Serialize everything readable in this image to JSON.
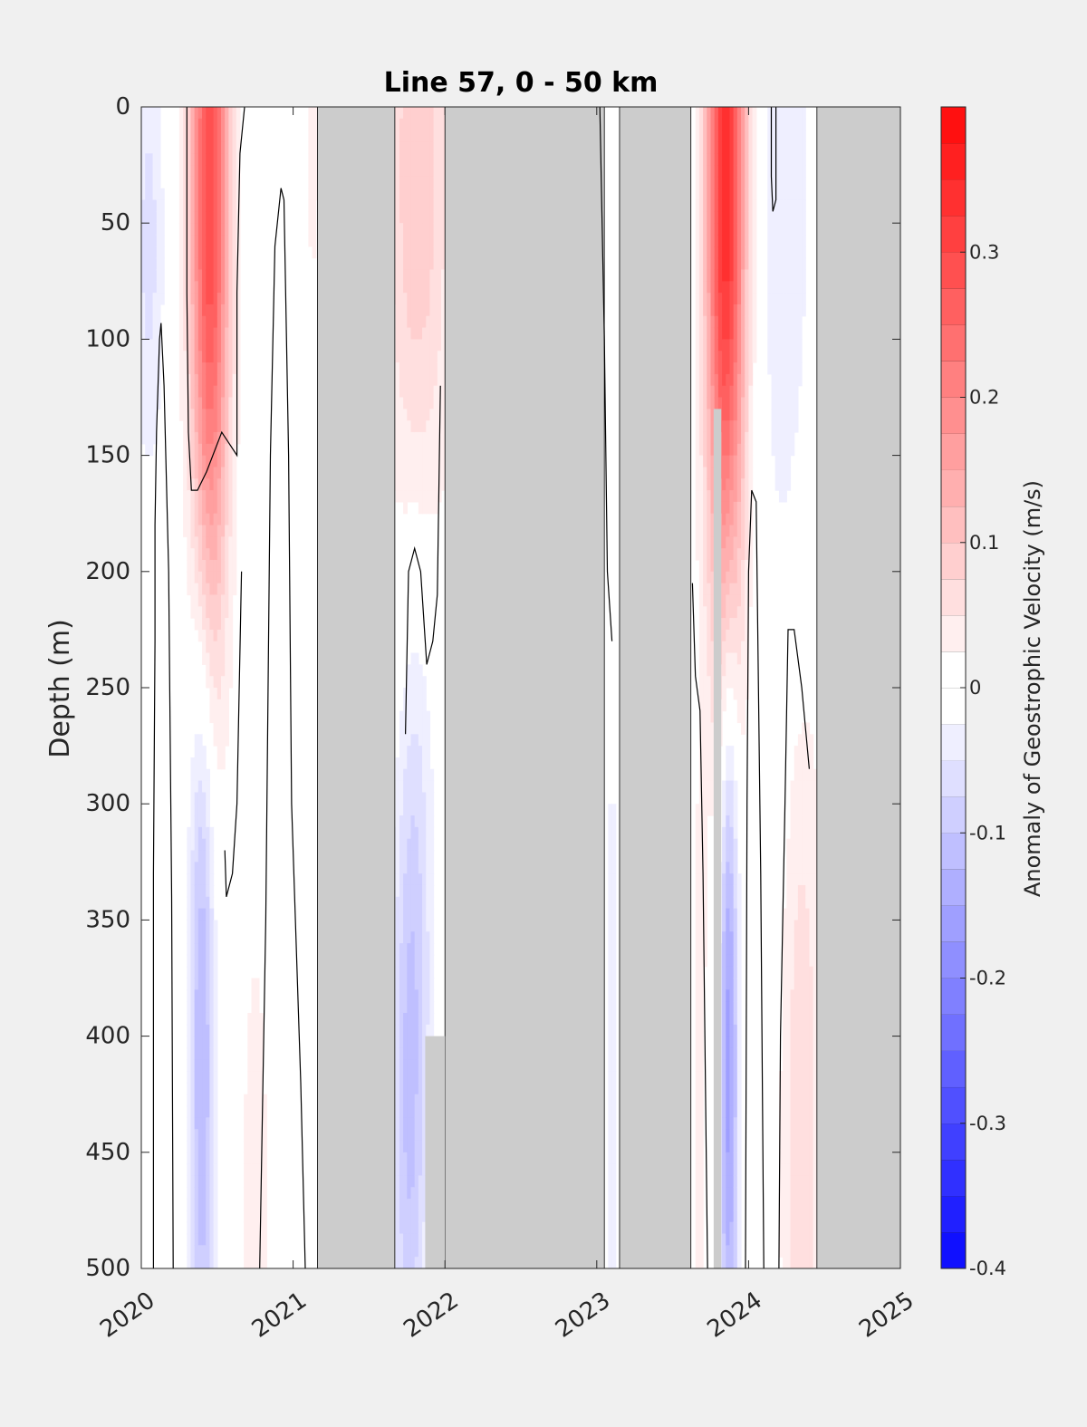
{
  "chart_data": {
    "type": "heatmap",
    "title": "Line 57, 0 - 50 km",
    "ylabel": "Depth (m)",
    "xlabel": "",
    "xlim": [
      2020,
      2025
    ],
    "ylim": [
      0,
      500
    ],
    "y_reversed": true,
    "x_ticks": [
      "2020",
      "2021",
      "2022",
      "2023",
      "2024",
      "2025"
    ],
    "y_ticks": [
      "0",
      "50",
      "100",
      "150",
      "200",
      "250",
      "300",
      "350",
      "400",
      "450",
      "500"
    ],
    "colorbar": {
      "label": "Anomaly of Geostrophic Velocity (m/s)",
      "range": [
        -0.4,
        0.4
      ],
      "step": 0.025,
      "ticks": [
        "0.3",
        "0.2",
        "0.1",
        "0",
        "-0.1",
        "-0.2",
        "-0.3",
        "-0.4"
      ],
      "colors": {
        "negative": "#0000ff",
        "zero": "#ffffff",
        "positive": "#ff0000"
      }
    },
    "no_data_color": "#cccccc",
    "no_data_periods": [
      {
        "start": 2021.16,
        "end": 2021.67
      },
      {
        "start": 2022.0,
        "end": 2023.05
      },
      {
        "start": 2023.15,
        "end": 2023.62
      },
      {
        "start": 2024.45,
        "end": 2025.0
      }
    ],
    "partial_gaps": [
      {
        "x_start": 2021.87,
        "x_end": 2022.0,
        "depth_from": 400,
        "depth_to": 500
      },
      {
        "x_start": 2023.77,
        "x_end": 2023.82,
        "depth_from": 130,
        "depth_to": 500
      }
    ],
    "velocity_features": [
      {
        "x_center": 2020.45,
        "depth_center": 40,
        "half_width_years": 0.09,
        "depth_scale": 130,
        "value": 0.3
      },
      {
        "x_center": 2020.4,
        "depth_center": 400,
        "half_width_years": 0.06,
        "depth_scale": 130,
        "value": -0.13
      },
      {
        "x_center": 2020.05,
        "depth_center": 60,
        "half_width_years": 0.07,
        "depth_scale": 70,
        "value": -0.06
      },
      {
        "x_center": 2020.75,
        "depth_center": 470,
        "half_width_years": 0.06,
        "depth_scale": 80,
        "value": 0.05
      },
      {
        "x_center": 2021.13,
        "depth_center": 20,
        "half_width_years": 0.03,
        "depth_scale": 40,
        "value": 0.05
      },
      {
        "x_center": 2021.82,
        "depth_center": 30,
        "half_width_years": 0.15,
        "depth_scale": 120,
        "value": 0.1
      },
      {
        "x_center": 2021.76,
        "depth_center": 440,
        "half_width_years": 0.08,
        "depth_scale": 100,
        "value": -0.09
      },
      {
        "x_center": 2021.82,
        "depth_center": 310,
        "half_width_years": 0.09,
        "depth_scale": 110,
        "value": -0.05
      },
      {
        "x_center": 2023.1,
        "depth_center": 440,
        "half_width_years": 0.02,
        "depth_scale": 120,
        "value": -0.06
      },
      {
        "x_center": 2023.85,
        "depth_center": 30,
        "half_width_years": 0.09,
        "depth_scale": 140,
        "value": 0.35
      },
      {
        "x_center": 2023.87,
        "depth_center": 400,
        "half_width_years": 0.045,
        "depth_scale": 120,
        "value": -0.17
      },
      {
        "x_center": 2024.25,
        "depth_center": 30,
        "half_width_years": 0.12,
        "depth_scale": 150,
        "value": -0.05
      },
      {
        "x_center": 2024.35,
        "depth_center": 440,
        "half_width_years": 0.1,
        "depth_scale": 150,
        "value": 0.07
      },
      {
        "x_center": 2023.68,
        "depth_center": 430,
        "half_width_years": 0.03,
        "depth_scale": 120,
        "value": 0.04
      }
    ],
    "zero_contours": [
      [
        [
          2020.08,
          500
        ],
        [
          2020.08,
          330
        ],
        [
          2020.09,
          230
        ],
        [
          2020.09,
          180
        ],
        [
          2020.1,
          140
        ],
        [
          2020.12,
          100
        ],
        [
          2020.13,
          93
        ],
        [
          2020.15,
          120
        ],
        [
          2020.18,
          200
        ],
        [
          2020.2,
          340
        ],
        [
          2020.21,
          500
        ]
      ],
      [
        [
          2020.3,
          0
        ],
        [
          2020.3,
          80
        ],
        [
          2020.31,
          140
        ],
        [
          2020.33,
          165
        ],
        [
          2020.37,
          165
        ],
        [
          2020.43,
          157
        ],
        [
          2020.53,
          140
        ],
        [
          2020.63,
          150
        ],
        [
          2020.63,
          80
        ],
        [
          2020.65,
          20
        ],
        [
          2020.68,
          0
        ]
      ],
      [
        [
          2020.78,
          500
        ],
        [
          2020.82,
          350
        ],
        [
          2020.85,
          150
        ],
        [
          2020.88,
          60
        ],
        [
          2020.92,
          35
        ],
        [
          2020.94,
          40
        ],
        [
          2020.97,
          150
        ],
        [
          2020.99,
          300
        ],
        [
          2021.05,
          420
        ],
        [
          2021.08,
          500
        ]
      ],
      [
        [
          2020.55,
          320
        ],
        [
          2020.56,
          340
        ],
        [
          2020.6,
          330
        ],
        [
          2020.63,
          300
        ],
        [
          2020.66,
          200
        ]
      ],
      [
        [
          2021.74,
          270
        ],
        [
          2021.76,
          200
        ],
        [
          2021.8,
          190
        ],
        [
          2021.84,
          200
        ],
        [
          2021.88,
          240
        ],
        [
          2021.92,
          230
        ],
        [
          2021.95,
          210
        ],
        [
          2021.97,
          120
        ]
      ],
      [
        [
          2023.02,
          0
        ],
        [
          2023.05,
          100
        ],
        [
          2023.07,
          200
        ],
        [
          2023.09,
          220
        ],
        [
          2023.1,
          230
        ]
      ],
      [
        [
          2023.63,
          205
        ],
        [
          2023.65,
          245
        ],
        [
          2023.68,
          260
        ],
        [
          2023.7,
          330
        ],
        [
          2023.73,
          500
        ]
      ],
      [
        [
          2023.98,
          500
        ],
        [
          2023.99,
          300
        ],
        [
          2024.0,
          200
        ],
        [
          2024.02,
          165
        ],
        [
          2024.05,
          170
        ],
        [
          2024.08,
          330
        ],
        [
          2024.1,
          500
        ]
      ],
      [
        [
          2024.2,
          500
        ],
        [
          2024.21,
          400
        ],
        [
          2024.24,
          300
        ],
        [
          2024.26,
          225
        ],
        [
          2024.3,
          225
        ],
        [
          2024.35,
          250
        ],
        [
          2024.4,
          285
        ]
      ],
      [
        [
          2024.15,
          0
        ],
        [
          2024.15,
          30
        ],
        [
          2024.16,
          45
        ],
        [
          2024.18,
          40
        ],
        [
          2024.18,
          0
        ]
      ]
    ]
  }
}
